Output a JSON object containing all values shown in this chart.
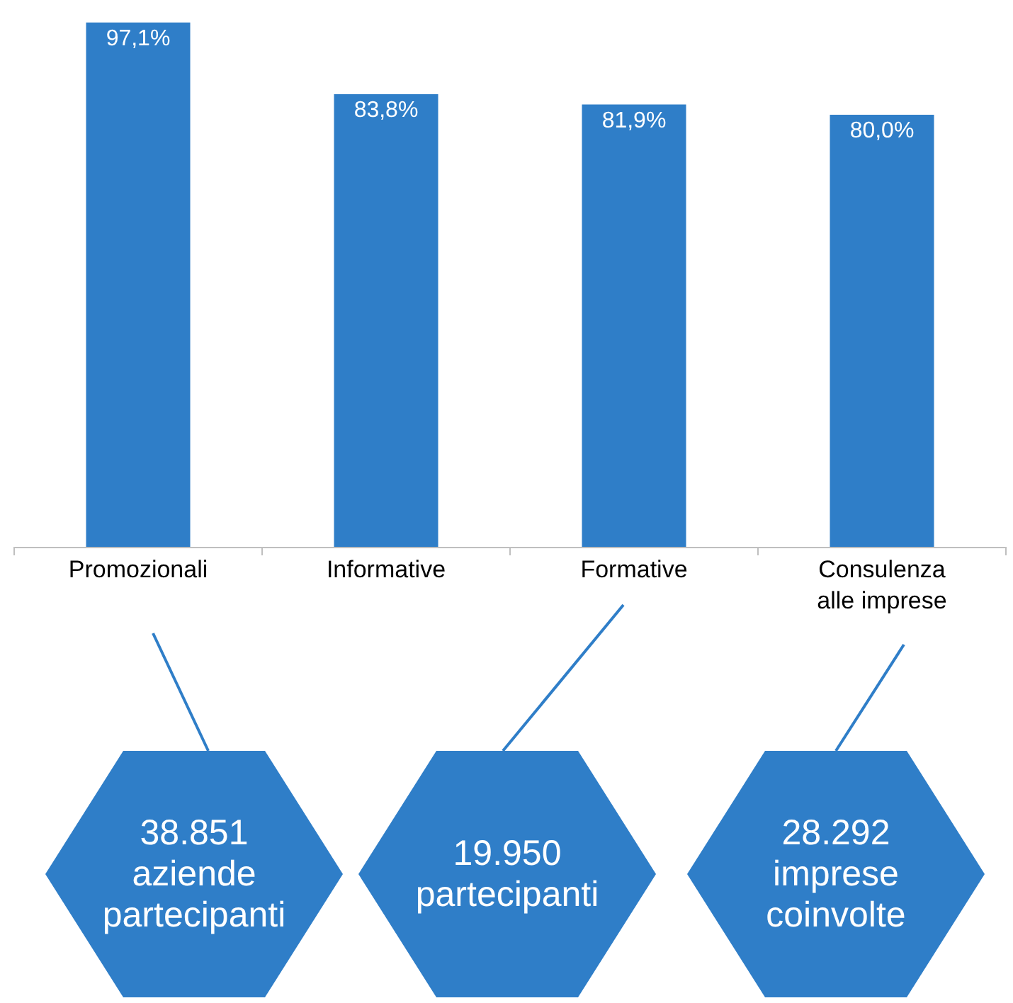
{
  "chart_data": {
    "type": "bar",
    "categories": [
      "Promozionali",
      "Informative",
      "Formative",
      "Consulenza alle imprese"
    ],
    "values": [
      97.1,
      83.8,
      81.9,
      80.0
    ],
    "value_labels": [
      "97,1%",
      "83,8%",
      "81,9%",
      "80,0%"
    ],
    "color": "#2f7ec8",
    "legend": false,
    "annotations": [
      "38.851 aziende partecipanti",
      "19.950 partecipanti",
      "28.292 imprese coinvolte"
    ]
  }
}
